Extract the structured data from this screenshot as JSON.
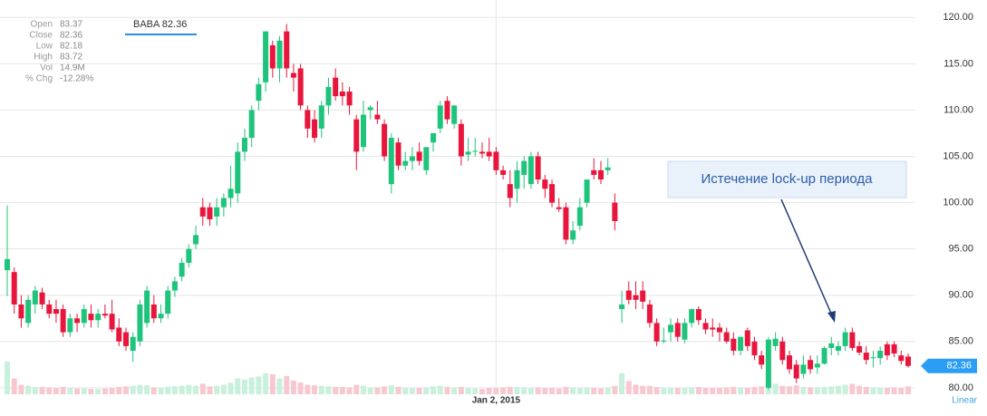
{
  "info": [
    {
      "label": "Open",
      "value": "83.37"
    },
    {
      "label": "Close",
      "value": "82.36"
    },
    {
      "label": "Low",
      "value": "82.18"
    },
    {
      "label": "High",
      "value": "83.72"
    },
    {
      "label": "Vol",
      "value": "14.9M"
    },
    {
      "label": "% Chg",
      "value": "-12.28%"
    }
  ],
  "legend": "BABA 82.36",
  "scale_mode": "Linear",
  "chart_data": {
    "type": "candlestick",
    "annotation": "Истечение lock-up периода",
    "up_color": "#1fc47c",
    "down_color": "#e8163c",
    "up_volume_color": "#c8f0dc",
    "down_volume_color": "#f8c8d0",
    "last_price": 82.36,
    "ylim": [
      79.3,
      121.4
    ],
    "yticks": [
      {
        "value": 80,
        "label": "80.00"
      },
      {
        "value": 85,
        "label": "85.00"
      },
      {
        "value": 90,
        "label": "90.00"
      },
      {
        "value": 95,
        "label": "95.00"
      },
      {
        "value": 100,
        "label": "100.00"
      },
      {
        "value": 105,
        "label": "105.00"
      },
      {
        "value": 110,
        "label": "110.00"
      },
      {
        "value": 115,
        "label": "115.00"
      },
      {
        "value": 120,
        "label": "120.00"
      }
    ],
    "grid": true,
    "categories": [
      null,
      null,
      null,
      null,
      null,
      null,
      null,
      null,
      null,
      null,
      null,
      null,
      null,
      null,
      null,
      null,
      null,
      null,
      null,
      null,
      null,
      null,
      null,
      null,
      null,
      null,
      null,
      null,
      null,
      null,
      null,
      null,
      null,
      null,
      null,
      null,
      null,
      null,
      null,
      null,
      null,
      null,
      null,
      null,
      null,
      null,
      null,
      null,
      null,
      null,
      null,
      null,
      null,
      null,
      null,
      null,
      null,
      null,
      null,
      null,
      null,
      null,
      null,
      null,
      null,
      null,
      null,
      null,
      null,
      null,
      "Jan 2, 2015",
      null,
      null,
      null,
      null,
      null,
      null,
      null,
      null,
      null,
      null,
      null,
      null,
      null,
      null,
      null,
      null,
      null,
      null,
      null,
      null,
      null,
      null,
      null,
      null,
      null,
      null,
      null,
      null,
      null,
      null,
      null,
      null,
      null,
      null,
      null,
      null,
      null,
      null,
      null,
      null,
      null,
      null,
      null,
      null,
      null,
      null,
      null,
      null,
      null,
      null,
      null,
      null,
      null,
      null,
      null,
      null,
      null,
      null,
      null
    ],
    "ohlc": [
      [
        92.7,
        99.7,
        89.9,
        93.9
      ],
      [
        92.5,
        93,
        88,
        89
      ],
      [
        89,
        90,
        86.5,
        87.5
      ],
      [
        87,
        90,
        86.5,
        89.5
      ],
      [
        89,
        91,
        88,
        90.5
      ],
      [
        90.3,
        90.8,
        88.5,
        89
      ],
      [
        89,
        89.5,
        87.5,
        88
      ],
      [
        88.5,
        89.5,
        87,
        88
      ],
      [
        88.5,
        89,
        85.5,
        86
      ],
      [
        86,
        88,
        85.5,
        87.5
      ],
      [
        87.5,
        88,
        86,
        87
      ],
      [
        87,
        89,
        86.5,
        88.5
      ],
      [
        88,
        89,
        86.5,
        87.3
      ],
      [
        87.3,
        88.5,
        86.5,
        88
      ],
      [
        88,
        89,
        87.5,
        87.8
      ],
      [
        88,
        89.5,
        86,
        86.3
      ],
      [
        86.5,
        87.5,
        84.5,
        85
      ],
      [
        86,
        86.5,
        84,
        84.5
      ],
      [
        84,
        86,
        82.8,
        85.5
      ],
      [
        85,
        89.5,
        84.5,
        89
      ],
      [
        87,
        91,
        86.5,
        90.5
      ],
      [
        89,
        90,
        87,
        87.5
      ],
      [
        87.5,
        89,
        87,
        88
      ],
      [
        88,
        91,
        87.5,
        90.5
      ],
      [
        90.5,
        92,
        89.8,
        91.5
      ],
      [
        92,
        94,
        91.5,
        93.5
      ],
      [
        93.5,
        95.5,
        93,
        95
      ],
      [
        95.5,
        97.5,
        95,
        96.5
      ],
      [
        99.5,
        100.5,
        97.5,
        98.5
      ],
      [
        99.5,
        100,
        97.5,
        98.2
      ],
      [
        98.5,
        100.5,
        97.5,
        99.5
      ],
      [
        99.5,
        101,
        98.5,
        100.5
      ],
      [
        100.5,
        104,
        99.5,
        101.5
      ],
      [
        101,
        106.5,
        100,
        105.5
      ],
      [
        105.5,
        108,
        104.5,
        107
      ],
      [
        107,
        110.5,
        106,
        110
      ],
      [
        111,
        113.5,
        110,
        112.8
      ],
      [
        113,
        118.5,
        112,
        118.5
      ],
      [
        117,
        117.5,
        113.5,
        114.5
      ],
      [
        114.5,
        118,
        113,
        117.5
      ],
      [
        118.5,
        119.3,
        113.5,
        114.5
      ],
      [
        114,
        115,
        112,
        113.5
      ],
      [
        114.5,
        115,
        110,
        110.5
      ],
      [
        110,
        110.5,
        107,
        108
      ],
      [
        109,
        110,
        106.5,
        107
      ],
      [
        108,
        111,
        107,
        110.5
      ],
      [
        110.5,
        113.5,
        109.5,
        112.5
      ],
      [
        113.5,
        114.5,
        111,
        111.5
      ],
      [
        112,
        113,
        110.5,
        111.5
      ],
      [
        112,
        112.5,
        109.5,
        110.5
      ],
      [
        109,
        109.5,
        103.5,
        105.5
      ],
      [
        106,
        111,
        105.5,
        109.5
      ],
      [
        110,
        110.5,
        109,
        110.3
      ],
      [
        109.5,
        111,
        108.5,
        109
      ],
      [
        108.5,
        109,
        104.5,
        105
      ],
      [
        102,
        107.5,
        101,
        107
      ],
      [
        106.5,
        107,
        103.5,
        104
      ],
      [
        104,
        105.5,
        103.5,
        104.5
      ],
      [
        104.5,
        106,
        103.5,
        105
      ],
      [
        105.5,
        106.5,
        104,
        104.5
      ],
      [
        103.5,
        106,
        103,
        106
      ],
      [
        106.5,
        107.5,
        105.5,
        107.5
      ],
      [
        108,
        111,
        107.5,
        110.5
      ],
      [
        111,
        111.5,
        108.5,
        109
      ],
      [
        108.5,
        110.5,
        108,
        110.5
      ],
      [
        108.5,
        109,
        104,
        105
      ],
      [
        105.2,
        107,
        104.5,
        105.5
      ],
      [
        105.5,
        107,
        105,
        105.6
      ],
      [
        105.5,
        106.5,
        104.8,
        105.3
      ],
      [
        105.5,
        107,
        104.5,
        105
      ],
      [
        105.5,
        106,
        103,
        103.5
      ],
      [
        103.5,
        104,
        102.5,
        103
      ],
      [
        102,
        103.5,
        99.5,
        100.5
      ],
      [
        101.5,
        104.5,
        100,
        103.5
      ],
      [
        103,
        105,
        101.5,
        104.5
      ],
      [
        102,
        105.5,
        101.5,
        105
      ],
      [
        105,
        105.5,
        102,
        102.5
      ],
      [
        102.5,
        103,
        100.5,
        101.5
      ],
      [
        102,
        102.5,
        99.5,
        100
      ],
      [
        99.5,
        100.5,
        99,
        99.3
      ],
      [
        99.5,
        100,
        95.5,
        96
      ],
      [
        96,
        98,
        95.5,
        97
      ],
      [
        97.5,
        100.5,
        97,
        99.5
      ],
      [
        100,
        102.5,
        99.5,
        102.5
      ],
      [
        103.5,
        104.8,
        102.5,
        103
      ],
      [
        103.5,
        104.5,
        102,
        102.5
      ],
      [
        103.5,
        104.8,
        103,
        103.8
      ],
      [
        100,
        101,
        97,
        98
      ],
      [
        88.5,
        90.5,
        87,
        89
      ],
      [
        90.5,
        91.5,
        89,
        89.5
      ],
      [
        90,
        91.5,
        88.5,
        89.5
      ],
      [
        90.5,
        91.5,
        88.5,
        89.3
      ],
      [
        89,
        89.5,
        86.5,
        87
      ],
      [
        87,
        87.5,
        84.5,
        85
      ],
      [
        85,
        86.5,
        84.8,
        85.1
      ],
      [
        86,
        87.5,
        85,
        86.8
      ],
      [
        87,
        87.5,
        85,
        85.5
      ],
      [
        85.2,
        87.5,
        84.8,
        87
      ],
      [
        87,
        88.5,
        86.5,
        88.5
      ],
      [
        88.5,
        88.8,
        86.8,
        87.3
      ],
      [
        87,
        87.5,
        85.8,
        86.3
      ],
      [
        86.5,
        87.5,
        85.5,
        86.3
      ],
      [
        86.5,
        87,
        85,
        86
      ],
      [
        86,
        86.5,
        84.8,
        85
      ],
      [
        85.3,
        86,
        83.5,
        84
      ],
      [
        84,
        85.5,
        83.5,
        85.5
      ],
      [
        86.2,
        86.5,
        84,
        84.5
      ],
      [
        85,
        85.5,
        83,
        83.5
      ],
      [
        83.5,
        84,
        82,
        82.5
      ],
      [
        80,
        85.5,
        79.8,
        85.2
      ],
      [
        84.5,
        86,
        84,
        85.3
      ],
      [
        85,
        85.5,
        82.5,
        83
      ],
      [
        83.5,
        84,
        81.5,
        82
      ],
      [
        82.5,
        83,
        80.5,
        81
      ],
      [
        81.5,
        83.5,
        81,
        82.5
      ],
      [
        83,
        83.5,
        81.5,
        82
      ],
      [
        82.2,
        83.5,
        81.5,
        82.6
      ],
      [
        82.6,
        84.5,
        82.5,
        84.3
      ],
      [
        84.3,
        85.5,
        83.5,
        84.8
      ],
      [
        84,
        85,
        83.5,
        84.5
      ],
      [
        84.5,
        86.5,
        84,
        86
      ],
      [
        86,
        86.5,
        84,
        84.3
      ],
      [
        84.5,
        85,
        83.5,
        83.8
      ],
      [
        83.8,
        84.5,
        82.5,
        83
      ],
      [
        83.3,
        84,
        82.2,
        83.3
      ],
      [
        83.2,
        84.5,
        82.5,
        84
      ],
      [
        84.7,
        85,
        83,
        83.5
      ],
      [
        84.7,
        85,
        83.3,
        83.7
      ],
      [
        83.5,
        84,
        82.5,
        82.9
      ],
      [
        83.37,
        83.72,
        82.18,
        82.36
      ]
    ],
    "volume": [
      62,
      30,
      18,
      16,
      14,
      14,
      13,
      12,
      14,
      12,
      11,
      11,
      10,
      10,
      11,
      12,
      14,
      15,
      16,
      18,
      17,
      13,
      12,
      14,
      15,
      16,
      18,
      16,
      20,
      15,
      16,
      18,
      22,
      30,
      28,
      32,
      34,
      40,
      38,
      30,
      35,
      26,
      22,
      18,
      17,
      16,
      15,
      14,
      14,
      13,
      18,
      16,
      12,
      13,
      15,
      17,
      14,
      12,
      12,
      12,
      13,
      15,
      16,
      14,
      13,
      14,
      12,
      11,
      10,
      12,
      12,
      13,
      14,
      14,
      13,
      12,
      13,
      12,
      12,
      11,
      14,
      13,
      12,
      13,
      12,
      11,
      12,
      16,
      40,
      25,
      18,
      16,
      16,
      14,
      13,
      12,
      12,
      12,
      13,
      14,
      12,
      12,
      12,
      13,
      14,
      13,
      12,
      14,
      15,
      35,
      20,
      16,
      15,
      17,
      14,
      13,
      13,
      14,
      15,
      16,
      18,
      20,
      16,
      14,
      13,
      12,
      12,
      13,
      12,
      15
    ]
  }
}
